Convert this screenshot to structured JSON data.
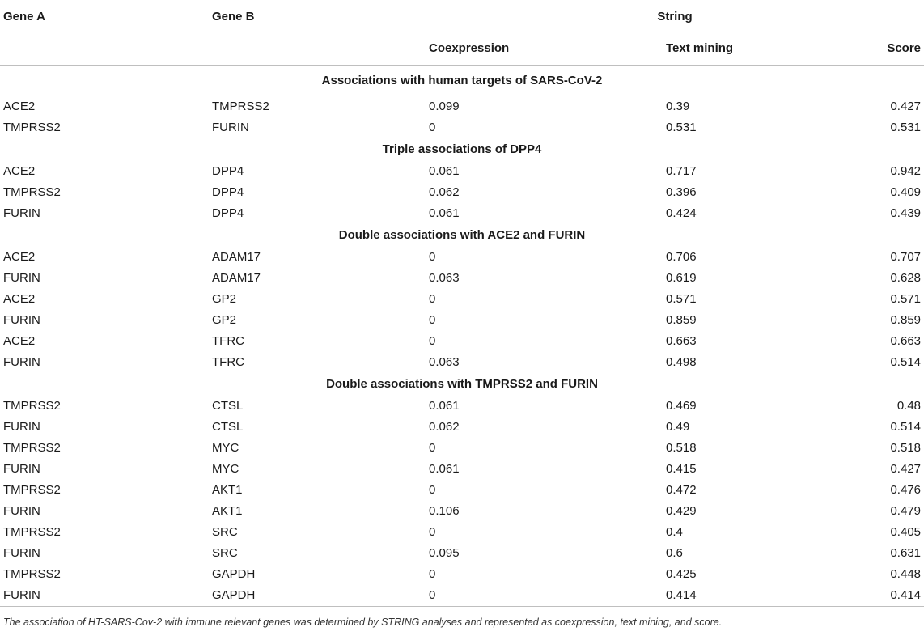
{
  "headers": {
    "gene_a": "Gene A",
    "gene_b": "Gene B",
    "group": "String",
    "coexpression": "Coexpression",
    "text_mining": "Text mining",
    "score": "Score"
  },
  "sections": [
    {
      "title": "Associations with human targets of SARS-CoV-2",
      "rows": [
        [
          "ACE2",
          "TMPRSS2",
          "0.099",
          "0.39",
          "0.427"
        ],
        [
          "TMPRSS2",
          "FURIN",
          "0",
          "0.531",
          "0.531"
        ]
      ]
    },
    {
      "title": "Triple associations of DPP4",
      "rows": [
        [
          "ACE2",
          "DPP4",
          "0.061",
          "0.717",
          "0.942"
        ],
        [
          "TMPRSS2",
          "DPP4",
          "0.062",
          "0.396",
          "0.409"
        ],
        [
          "FURIN",
          "DPP4",
          "0.061",
          "0.424",
          "0.439"
        ]
      ]
    },
    {
      "title": "Double associations with ACE2 and FURIN",
      "rows": [
        [
          "ACE2",
          "ADAM17",
          "0",
          "0.706",
          "0.707"
        ],
        [
          "FURIN",
          "ADAM17",
          "0.063",
          "0.619",
          "0.628"
        ],
        [
          "ACE2",
          "GP2",
          "0",
          "0.571",
          "0.571"
        ],
        [
          "FURIN",
          "GP2",
          "0",
          "0.859",
          "0.859"
        ],
        [
          "ACE2",
          "TFRC",
          "0",
          "0.663",
          "0.663"
        ],
        [
          "FURIN",
          "TFRC",
          "0.063",
          "0.498",
          "0.514"
        ]
      ]
    },
    {
      "title": "Double associations with TMPRSS2 and FURIN",
      "rows": [
        [
          "TMPRSS2",
          "CTSL",
          "0.061",
          "0.469",
          "0.48"
        ],
        [
          "FURIN",
          "CTSL",
          "0.062",
          "0.49",
          "0.514"
        ],
        [
          "TMPRSS2",
          "MYC",
          "0",
          "0.518",
          "0.518"
        ],
        [
          "FURIN",
          "MYC",
          "0.061",
          "0.415",
          "0.427"
        ],
        [
          "TMPRSS2",
          "AKT1",
          "0",
          "0.472",
          "0.476"
        ],
        [
          "FURIN",
          "AKT1",
          "0.106",
          "0.429",
          "0.479"
        ],
        [
          "TMPRSS2",
          "SRC",
          "0",
          "0.4",
          "0.405"
        ],
        [
          "FURIN",
          "SRC",
          "0.095",
          "0.6",
          "0.631"
        ],
        [
          "TMPRSS2",
          "GAPDH",
          "0",
          "0.425",
          "0.448"
        ],
        [
          "FURIN",
          "GAPDH",
          "0",
          "0.414",
          "0.414"
        ]
      ]
    }
  ],
  "caption": "The association of HT-SARS-Cov-2 with immune relevant genes was determined by STRING analyses and represented as coexpression, text mining, and score."
}
